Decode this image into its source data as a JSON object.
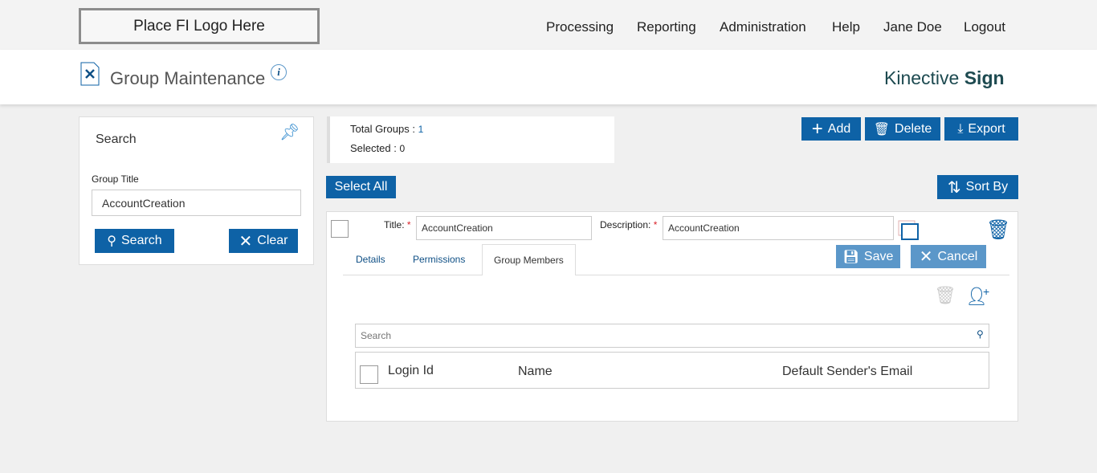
{
  "logo": "Place FI Logo Here",
  "nav": [
    "Processing",
    "Reporting",
    "Administration",
    "Help",
    "Jane Doe",
    "Logout"
  ],
  "header": {
    "title": "Group Maintenance",
    "brand_light": "Kinective",
    "brand_bold": "Sign"
  },
  "search_panel": {
    "title": "Search",
    "field_label": "Group Title",
    "field_value": "AccountCreation",
    "search": "Search",
    "clear": "Clear"
  },
  "summary": {
    "total_label": "Total Groups :",
    "total": "1",
    "selected_label": "Selected :",
    "selected": "0"
  },
  "toolbar": {
    "add": "Add",
    "delete": "Delete",
    "export": "Export",
    "select_all": "Select All",
    "sort_by": "Sort By"
  },
  "group": {
    "title_label": "Title:",
    "title_value": "AccountCreation",
    "desc_label": "Description:",
    "desc_value": "AccountCreation",
    "save": "Save",
    "cancel": "Cancel",
    "tabs": [
      "Details",
      "Permissions",
      "Group Members"
    ],
    "active_tab": "Group Members",
    "members": {
      "search_placeholder": "Search",
      "columns": [
        "Login Id",
        "Name",
        "Default Sender's Email"
      ]
    }
  },
  "colors": {
    "primary": "#0e62a6",
    "disabled": "#5b97c9",
    "required": "#d9232a"
  }
}
